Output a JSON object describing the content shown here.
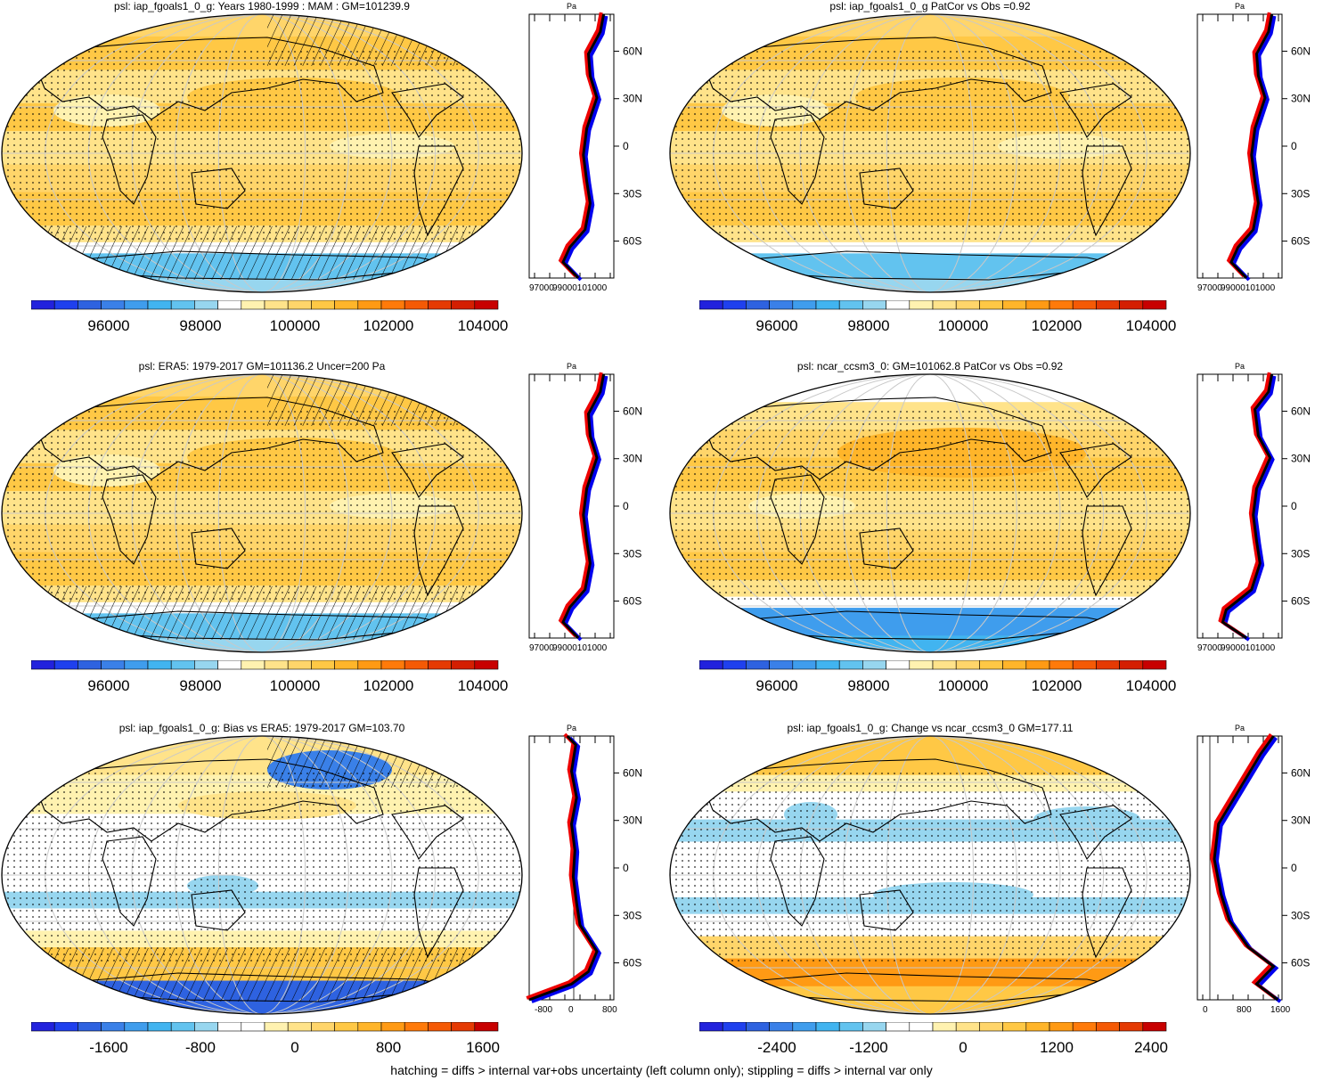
{
  "footer": "hatching = diffs > internal var+obs uncertainty (left column only); stippling = diffs > internal var only",
  "profile_axis_title": "Pa",
  "lat_labels": [
    "60N",
    "30N",
    "0",
    "30S",
    "60S"
  ],
  "colors": {
    "climatology": [
      "#2222dd",
      "#1f40ee",
      "#2e62e0",
      "#3a80e8",
      "#3f9ded",
      "#41b4f0",
      "#62c3ef",
      "#97d6ef",
      "#ffffff",
      "#fff2b0",
      "#ffe38a",
      "#ffd56a",
      "#ffc845",
      "#ffb52a",
      "#ff9a14",
      "#ff7a0a",
      "#f55a05",
      "#e53a03",
      "#d41f02",
      "#c80000"
    ],
    "difference": [
      "#2222dd",
      "#1f40ee",
      "#2e62e0",
      "#3a80e8",
      "#3f9ded",
      "#41b4f0",
      "#62c3ef",
      "#97d6ef",
      "#ffffff",
      "#ffffff",
      "#fff2b0",
      "#ffe38a",
      "#ffd56a",
      "#ffc845",
      "#ffb52a",
      "#ff9a14",
      "#ff7a0a",
      "#f55a05",
      "#e53a03",
      "#c80000"
    ],
    "profile_model": "#0000ee",
    "profile_obs": "#ee0000",
    "profile_ensemble": "#000000"
  },
  "panels": [
    {
      "id": "model-climatology",
      "title": "psl: iap_fgoals1_0_g: Years 1980-1999 : MAM : GM=101239.9",
      "colorbar": {
        "scale": "climatology",
        "labels": [
          "96000",
          "98000",
          "100000",
          "102000",
          "104000"
        ]
      },
      "profile": {
        "type": "climatology",
        "x_ticks": [
          "97000",
          "99000101000"
        ],
        "hatched": true
      }
    },
    {
      "id": "model-pattern-correlation",
      "title": "psl: iap_fgoals1_0_g PatCor vs Obs =0.92",
      "colorbar": {
        "scale": "climatology",
        "labels": [
          "96000",
          "98000",
          "100000",
          "102000",
          "104000"
        ]
      },
      "profile": {
        "type": "climatology",
        "x_ticks": [
          "97000",
          "99000101000"
        ],
        "hatched": false
      }
    },
    {
      "id": "era5-climatology",
      "title": "psl: ERA5: 1979-2017 GM=101136.2 Uncer=200 Pa",
      "colorbar": {
        "scale": "climatology",
        "labels": [
          "96000",
          "98000",
          "100000",
          "102000",
          "104000"
        ]
      },
      "profile": {
        "type": "climatology",
        "x_ticks": [
          "97000",
          "99000101000"
        ],
        "hatched": true
      }
    },
    {
      "id": "ccsm3-climatology",
      "title": "psl: ncar_ccsm3_0: GM=101062.8 PatCor vs Obs =0.92",
      "colorbar": {
        "scale": "climatology",
        "labels": [
          "96000",
          "98000",
          "100000",
          "102000",
          "104000"
        ]
      },
      "profile": {
        "type": "climatology-ccsm",
        "x_ticks": [
          "97000",
          "99000101000"
        ],
        "hatched": false
      }
    },
    {
      "id": "bias-vs-era5",
      "title": "psl: iap_fgoals1_0_g: Bias vs ERA5: 1979-2017 GM=103.70",
      "colorbar": {
        "scale": "difference",
        "labels": [
          "-1600",
          "-800",
          "0",
          "800",
          "1600"
        ]
      },
      "profile": {
        "type": "bias",
        "x_ticks": [
          "-800",
          "0",
          "800"
        ],
        "hatched": true
      }
    },
    {
      "id": "change-vs-ccsm3",
      "title": "psl: iap_fgoals1_0_g: Change vs ncar_ccsm3_0 GM=177.11",
      "colorbar": {
        "scale": "difference",
        "labels": [
          "-2400",
          "-1200",
          "0",
          "1200",
          "2400"
        ]
      },
      "profile": {
        "type": "change",
        "x_ticks": [
          "0",
          "800",
          "1600"
        ],
        "hatched": false
      }
    }
  ]
}
